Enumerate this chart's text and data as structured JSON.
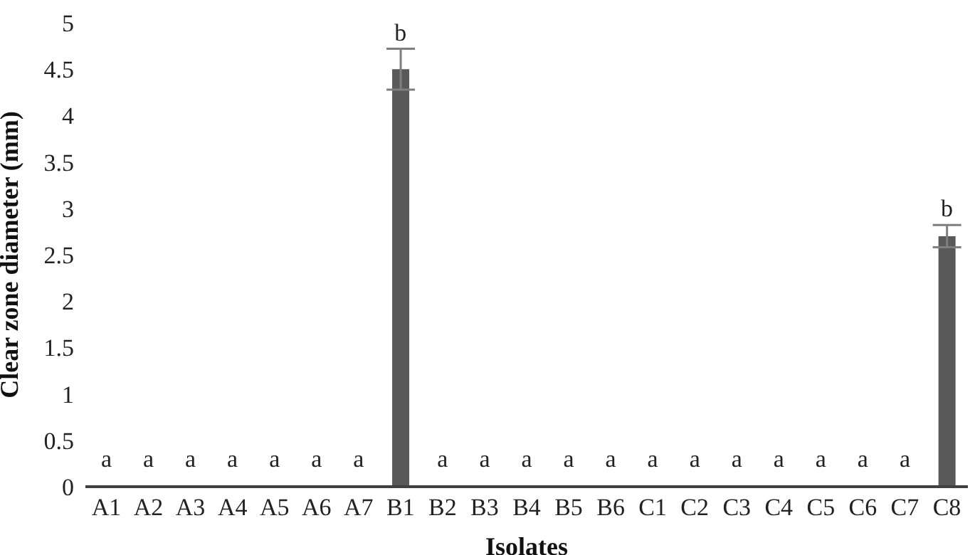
{
  "chart_data": {
    "type": "bar",
    "xlabel": "Isolates",
    "ylabel": "Clear zone diameter (mm)",
    "categories": [
      "A1",
      "A2",
      "A3",
      "A4",
      "A5",
      "A6",
      "A7",
      "B1",
      "B2",
      "B3",
      "B4",
      "B5",
      "B6",
      "C1",
      "C2",
      "C3",
      "C4",
      "C5",
      "C6",
      "C7",
      "C8"
    ],
    "values": [
      0,
      0,
      0,
      0,
      0,
      0,
      0,
      4.5,
      0,
      0,
      0,
      0,
      0,
      0,
      0,
      0,
      0,
      0,
      0,
      0,
      2.7
    ],
    "errors": [
      null,
      null,
      null,
      null,
      null,
      null,
      null,
      0.22,
      null,
      null,
      null,
      null,
      null,
      null,
      null,
      null,
      null,
      null,
      null,
      null,
      0.12
    ],
    "color": "#595959",
    "ylim": [
      0,
      5
    ],
    "yticks": [
      0,
      0.5,
      1,
      1.5,
      2,
      2.5,
      3,
      3.5,
      4,
      4.5,
      5
    ],
    "grid": false,
    "annotations": [
      {
        "text": "a",
        "x": "A1",
        "y": 0
      },
      {
        "text": "a",
        "x": "A2",
        "y": 0
      },
      {
        "text": "a",
        "x": "A3",
        "y": 0
      },
      {
        "text": "a",
        "x": "A4",
        "y": 0
      },
      {
        "text": "a",
        "x": "A5",
        "y": 0
      },
      {
        "text": "a",
        "x": "A6",
        "y": 0
      },
      {
        "text": "a",
        "x": "A7",
        "y": 0
      },
      {
        "text": "b",
        "x": "B1",
        "y": 4.72
      },
      {
        "text": "a",
        "x": "B2",
        "y": 0
      },
      {
        "text": "a",
        "x": "B3",
        "y": 0
      },
      {
        "text": "a",
        "x": "B4",
        "y": 0
      },
      {
        "text": "a",
        "x": "B5",
        "y": 0
      },
      {
        "text": "a",
        "x": "B6",
        "y": 0
      },
      {
        "text": "a",
        "x": "C1",
        "y": 0
      },
      {
        "text": "a",
        "x": "C2",
        "y": 0
      },
      {
        "text": "a",
        "x": "C3",
        "y": 0
      },
      {
        "text": "a",
        "x": "C4",
        "y": 0
      },
      {
        "text": "a",
        "x": "C5",
        "y": 0
      },
      {
        "text": "a",
        "x": "C6",
        "y": 0
      },
      {
        "text": "a",
        "x": "C7",
        "y": 0
      },
      {
        "text": "b",
        "x": "C8",
        "y": 2.82
      }
    ]
  }
}
